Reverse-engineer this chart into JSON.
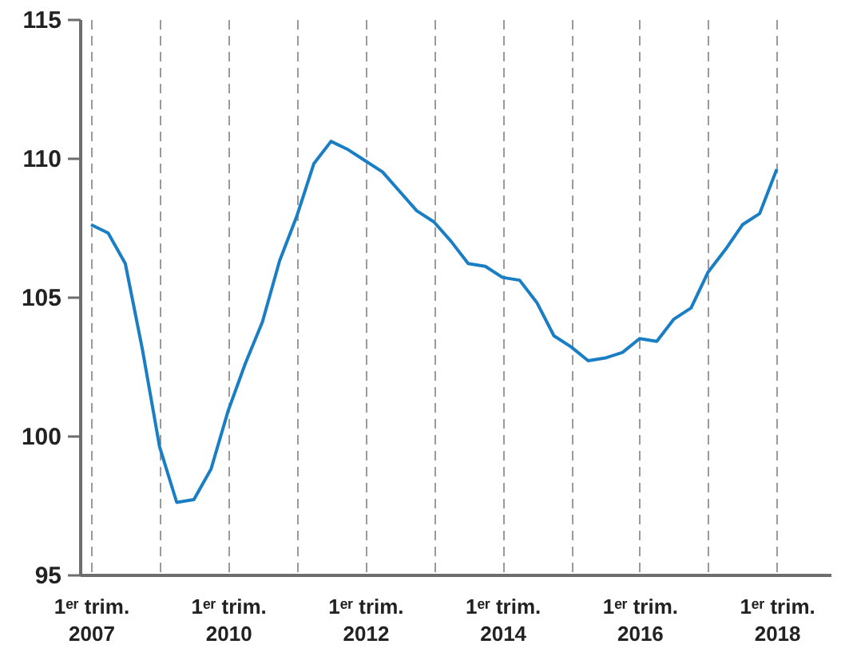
{
  "chart_data": {
    "type": "line",
    "categories": [
      "1ᵉʳ trim.\n2007",
      null,
      null,
      null,
      null,
      null,
      null,
      null,
      "1ᵉʳ trim.\n2010",
      null,
      null,
      null,
      null,
      null,
      null,
      null,
      "1ᵉʳ trim.\n2012",
      null,
      null,
      null,
      null,
      null,
      null,
      null,
      "1ᵉʳ trim.\n2014",
      null,
      null,
      null,
      null,
      null,
      null,
      null,
      "1ᵉʳ trim.\n2016",
      null,
      null,
      null,
      null,
      null,
      null,
      null,
      "1ᵉʳ trim.\n2018"
    ],
    "series": [
      {
        "color": "#1a7ec4",
        "values": [
          107.6,
          107.3,
          106.2,
          103.1,
          99.6,
          97.6,
          97.7,
          98.8,
          100.9,
          102.6,
          104.1,
          106.3,
          107.9,
          109.8,
          110.6,
          110.3,
          109.9,
          109.5,
          108.8,
          108.1,
          107.7,
          107.0,
          106.2,
          106.1,
          105.7,
          105.6,
          104.8,
          103.6,
          103.2,
          102.7,
          102.8,
          103.0,
          103.5,
          103.4,
          104.2,
          104.6,
          105.9,
          106.7,
          107.6,
          108.0,
          109.6
        ]
      }
    ],
    "ylim": [
      95,
      115
    ],
    "yticks": [
      95,
      100,
      105,
      110,
      115
    ],
    "grid": "x"
  }
}
